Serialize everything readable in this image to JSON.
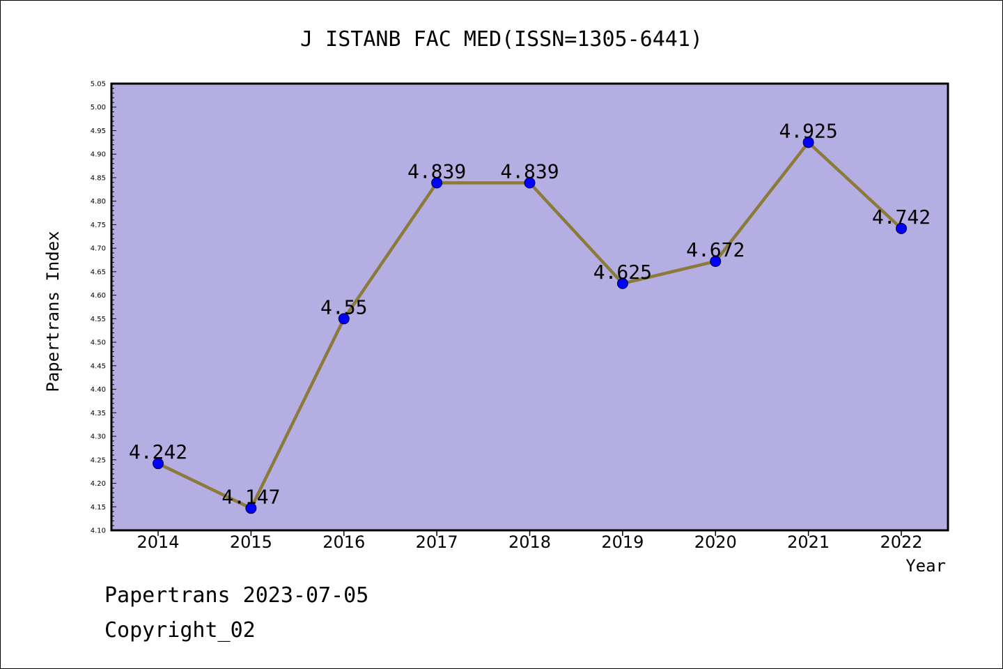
{
  "chart_data": {
    "type": "line",
    "title": "J ISTANB FAC MED(ISSN=1305-6441)",
    "xlabel": "Year",
    "ylabel": "Papertrans Index",
    "categories": [
      "2014",
      "2015",
      "2016",
      "2017",
      "2018",
      "2019",
      "2020",
      "2021",
      "2022"
    ],
    "values": [
      4.242,
      4.147,
      4.55,
      4.839,
      4.839,
      4.625,
      4.672,
      4.925,
      4.742
    ],
    "data_labels": [
      "4.242",
      "4.147",
      "4.55",
      "4.839",
      "4.839",
      "4.625",
      "4.672",
      "4.925",
      "4.742"
    ],
    "ylim": [
      4.1,
      5.05
    ],
    "yticks": [
      "4.10",
      "4.15",
      "4.20",
      "4.25",
      "4.30",
      "4.35",
      "4.40",
      "4.45",
      "4.50",
      "4.55",
      "4.60",
      "4.65",
      "4.70",
      "4.75",
      "4.80",
      "4.85",
      "4.90",
      "4.95",
      "5.00",
      "5.05"
    ],
    "grid": false,
    "colors": {
      "plot_background": "#b5aee2",
      "line": "#8b7a3a",
      "marker": "#0000ff"
    }
  },
  "footer": {
    "date_text": "Papertrans 2023-07-05",
    "copyright_text": "Copyright_02"
  }
}
